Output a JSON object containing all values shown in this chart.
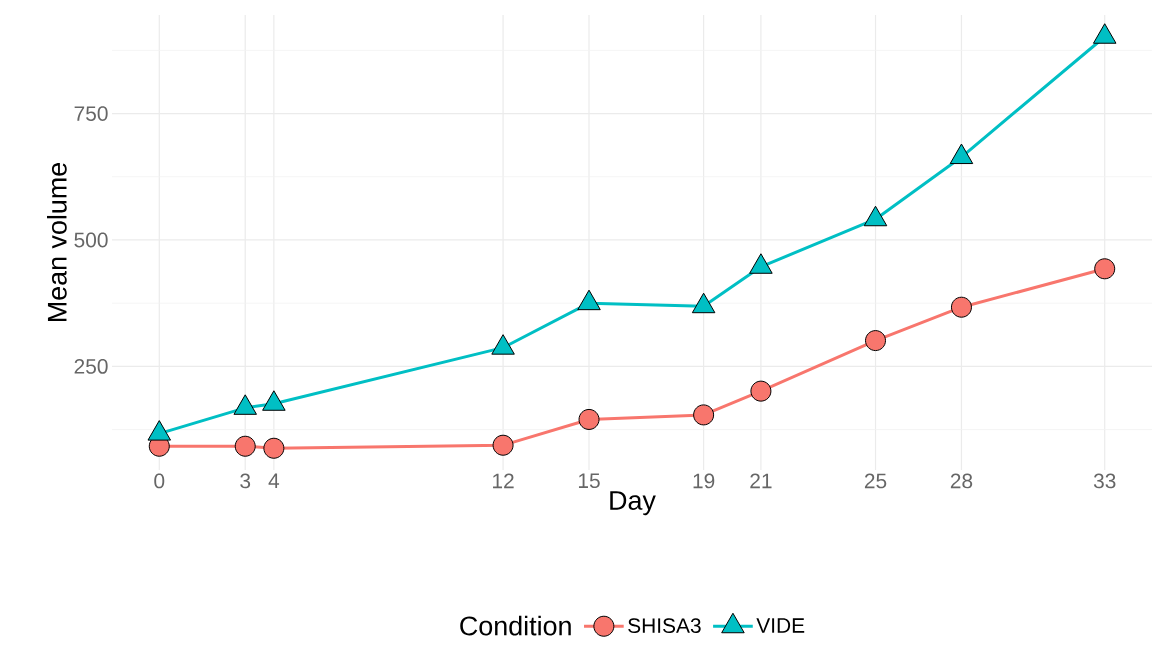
{
  "chart_data": {
    "type": "line",
    "xlabel": "Day",
    "ylabel": "Mean volume",
    "legend_title": "Condition",
    "x": [
      0,
      3,
      4,
      12,
      15,
      19,
      21,
      25,
      28,
      33
    ],
    "series": [
      {
        "name": "SHISA3",
        "color": "#f8766d",
        "marker": "circle",
        "values": [
          92,
          92,
          88,
          94,
          145,
          154,
          201,
          301,
          367,
          443
        ]
      },
      {
        "name": "VIDE",
        "color": "#00bfc4",
        "marker": "triangle",
        "values": [
          117,
          168,
          176,
          287,
          375,
          369,
          447,
          541,
          664,
          902
        ]
      }
    ],
    "xlim": [
      -1.65,
      34.65
    ],
    "ylim": [
      45,
      945
    ],
    "xticks": [
      0,
      3,
      4,
      12,
      15,
      19,
      21,
      25,
      28,
      33
    ],
    "yticks": [
      250,
      500,
      750
    ],
    "grid": true,
    "legend": "bottom",
    "line_style": "solid"
  }
}
